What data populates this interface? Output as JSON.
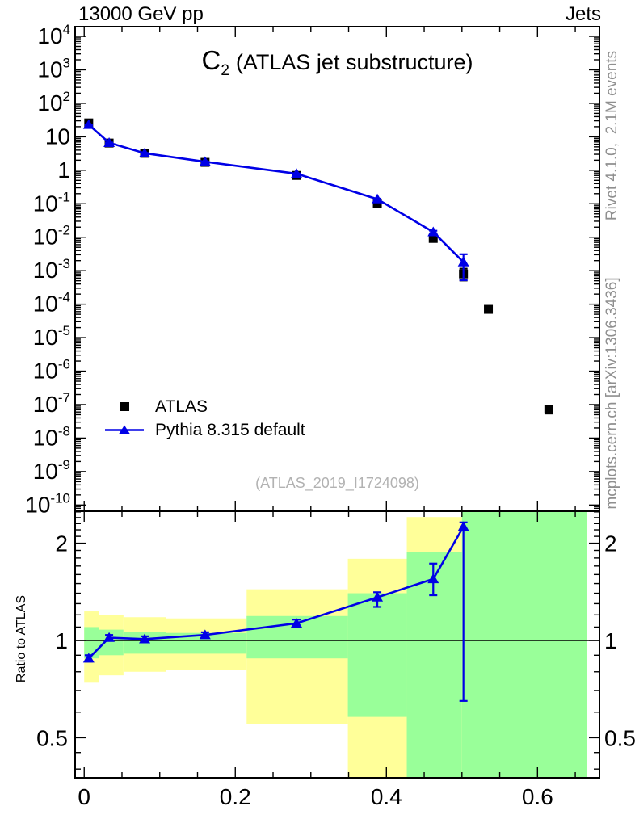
{
  "header": {
    "left": "13000 GeV pp",
    "right": "Jets"
  },
  "title": {
    "symbol": "C",
    "subscript": "2",
    "text": "(ATLAS jet substructure)"
  },
  "legend": {
    "items": [
      {
        "label": "ATLAS",
        "marker": "square",
        "color_key": "black"
      },
      {
        "label": "Pythia 8.315 default",
        "marker": "line-triangle",
        "color_key": "blue"
      }
    ]
  },
  "watermark": "(ATLAS_2019_I1724098)",
  "side_notes": {
    "top": "Rivet 4.1.0,  2.1M events",
    "bottom": "mcplots.cern.ch [arXiv:1306.3436]"
  },
  "colors": {
    "black": "#000000",
    "blue": "#0000e6",
    "band_yellow": "#ffff99",
    "band_green": "#99ff99",
    "note_gray": "#8f8f8f",
    "watermark_gray": "#b2b2b2"
  },
  "chart_data": {
    "type": "line",
    "title": "C2 (ATLAS jet substructure)",
    "xlabel": "",
    "legend_position": "left-middle",
    "panels": [
      {
        "id": "main",
        "yscale": "log",
        "xlim": [
          -0.012,
          0.682
        ],
        "ylim_log": [
          -10.185,
          4.29
        ],
        "xticks": {
          "major": [
            {
              "v": 0,
              "label": "0"
            },
            {
              "v": 0.2,
              "label": "0.2"
            },
            {
              "v": 0.4,
              "label": "0.4"
            },
            {
              "v": 0.6,
              "label": "0.6"
            }
          ],
          "minor_step": 0.05,
          "minor_max": 0.665,
          "labels_visible": false
        },
        "ytick_exponents": [
          4,
          3,
          2,
          1,
          0,
          -1,
          -2,
          -3,
          -4,
          -5,
          -6,
          -7,
          -8,
          -9,
          -10
        ],
        "series": [
          {
            "name": "ATLAS",
            "marker": "square",
            "line": false,
            "color_key": "black",
            "x": [
              0.006,
              0.033,
              0.08,
              0.16,
              0.281,
              0.388,
              0.462,
              0.502,
              0.535,
              0.615
            ],
            "y": [
              26,
              6.5,
              3.2,
              1.72,
              0.7,
              0.101,
              0.0092,
              0.0008,
              7e-05,
              7.2e-08
            ],
            "yerr_lo": [
              22,
              6.2,
              3.05,
              1.65,
              0.67,
              0.094,
              0.0084,
              0.00051,
              5.6e-05,
              5.4e-08
            ],
            "yerr_hi": [
              30,
              6.8,
              3.35,
              1.79,
              0.73,
              0.108,
              0.01,
              0.00115,
              8.4e-05,
              9e-08
            ]
          },
          {
            "name": "Pythia 8.315 default",
            "marker": "triangle",
            "line": true,
            "color_key": "blue",
            "x": [
              0.006,
              0.033,
              0.08,
              0.16,
              0.281,
              0.388,
              0.462,
              0.502
            ],
            "y": [
              22.9,
              6.63,
              3.23,
              1.79,
              0.79,
              0.137,
              0.0143,
              0.0018
            ],
            "yerr_lo": [
              22.4,
              6.5,
              3.17,
              1.76,
              0.775,
              0.132,
              0.0131,
              0.00052
            ],
            "yerr_hi": [
              23.4,
              6.75,
              3.29,
              1.82,
              0.805,
              0.142,
              0.0156,
              0.0031
            ]
          }
        ]
      },
      {
        "id": "ratio",
        "ylabel": "Ratio to ATLAS",
        "yscale": "log",
        "xlim": [
          -0.012,
          0.682
        ],
        "ylim_log": [
          -0.425,
          0.4
        ],
        "reference_line": 1,
        "xticks": {
          "major": [
            {
              "v": 0,
              "label": "0"
            },
            {
              "v": 0.2,
              "label": "0.2"
            },
            {
              "v": 0.4,
              "label": "0.4"
            },
            {
              "v": 0.6,
              "label": "0.6"
            }
          ],
          "minor_step": 0.05,
          "minor_max": 0.665,
          "labels_visible": true
        },
        "yticks": [
          {
            "v": 2,
            "label": "2"
          },
          {
            "v": 1,
            "label": "1"
          },
          {
            "v": 0.5,
            "label": "0.5"
          }
        ],
        "yminor": [
          0.4,
          0.45,
          0.6,
          0.7,
          0.8,
          0.9,
          1.1,
          1.2,
          1.3,
          1.4,
          1.5,
          1.6,
          1.7,
          1.8,
          1.9,
          2.1,
          2.2,
          2.3,
          2.4,
          2.5
        ],
        "bands": [
          {
            "x0": 0.0,
            "x1": 0.02,
            "yellow": [
              0.74,
              1.23
            ],
            "green": [
              0.88,
              1.1
            ]
          },
          {
            "x0": 0.02,
            "x1": 0.052,
            "yellow": [
              0.78,
              1.2
            ],
            "green": [
              0.9,
              1.08
            ]
          },
          {
            "x0": 0.052,
            "x1": 0.108,
            "yellow": [
              0.8,
              1.18
            ],
            "green": [
              0.91,
              1.065
            ]
          },
          {
            "x0": 0.108,
            "x1": 0.215,
            "yellow": [
              0.81,
              1.17
            ],
            "green": [
              0.91,
              1.055
            ]
          },
          {
            "x0": 0.215,
            "x1": 0.349,
            "yellow": [
              0.55,
              1.44
            ],
            "green": [
              0.88,
              1.19
            ]
          },
          {
            "x0": 0.349,
            "x1": 0.427,
            "yellow": [
              0.376,
              1.79
            ],
            "green": [
              0.58,
              1.4
            ]
          },
          {
            "x0": 0.427,
            "x1": 0.5,
            "yellow": [
              0.376,
              2.41
            ],
            "green": [
              0.376,
              1.88
            ]
          },
          {
            "x0": 0.5,
            "x1": 0.665,
            "yellow": [
              0.376,
              2.512
            ],
            "green": [
              0.376,
              2.512
            ]
          }
        ],
        "series": [
          {
            "name": "Pythia 8.315 default / ATLAS",
            "marker": "triangle",
            "line": true,
            "color_key": "blue",
            "x": [
              0.006,
              0.033,
              0.08,
              0.16,
              0.281,
              0.388,
              0.462,
              0.502
            ],
            "y": [
              0.88,
              1.02,
              1.01,
              1.04,
              1.13,
              1.36,
              1.55,
              2.25
            ],
            "yerr_lo": [
              0.86,
              1.0,
              0.99,
              1.02,
              1.1,
              1.27,
              1.38,
              0.65
            ],
            "yerr_hi": [
              0.9,
              1.04,
              1.03,
              1.06,
              1.16,
              1.41,
              1.73,
              2.32
            ]
          }
        ]
      }
    ]
  }
}
